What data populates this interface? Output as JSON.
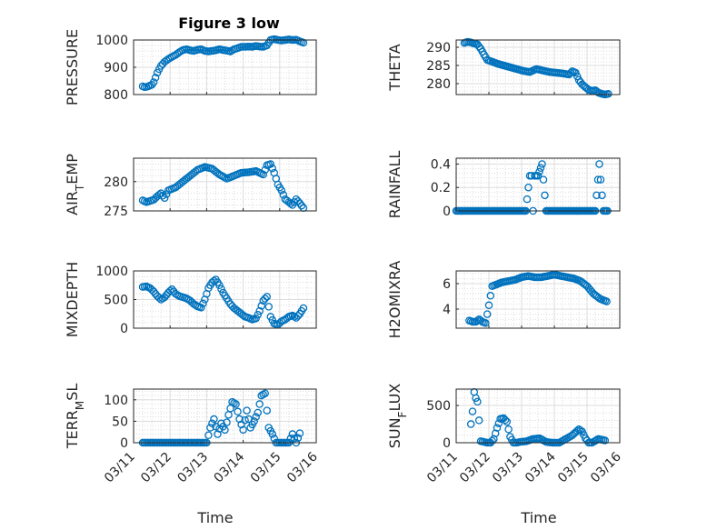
{
  "figure_title": "Figure 3 low",
  "marker_color": "#0072BD",
  "chart_data": [
    {
      "type": "scatter",
      "title": "Figure 3 low",
      "ylabel": "PRESSURE",
      "xlim": [
        "03/11",
        "03/16"
      ],
      "ylim": [
        800,
        1000
      ],
      "yticks": [
        800,
        900,
        1000
      ],
      "grid": true,
      "x": [
        "03/11 06:00",
        "03/11 07:12",
        "03/11 08:24",
        "03/11 09:36",
        "03/11 10:48",
        "03/11 12:00",
        "03/11 13:12",
        "03/11 14:24",
        "03/11 15:36",
        "03/11 16:48",
        "03/11 18:00",
        "03/11 20:24",
        "03/11 22:48",
        "03/12 01:12",
        "03/12 03:36",
        "03/12 06:00",
        "03/12 08:24",
        "03/12 10:48",
        "03/12 13:12",
        "03/12 15:36",
        "03/12 18:00",
        "03/12 20:24",
        "03/12 22:48",
        "03/13 01:12",
        "03/13 03:36",
        "03/13 06:00",
        "03/13 08:24",
        "03/13 10:48",
        "03/13 13:12",
        "03/13 15:36",
        "03/13 18:00",
        "03/13 20:24",
        "03/13 22:48",
        "03/14 01:12",
        "03/14 03:36",
        "03/14 06:00",
        "03/14 08:24",
        "03/14 10:48",
        "03/14 13:12",
        "03/14 15:36",
        "03/14 18:00",
        "03/14 20:24",
        "03/14 22:48",
        "03/15 01:12",
        "03/15 03:36",
        "03/15 06:00",
        "03/15 08:24",
        "03/15 10:48",
        "03/15 13:12",
        "03/15 15:36"
      ],
      "y": [
        830,
        827,
        828,
        830,
        833,
        836,
        845,
        862,
        880,
        893,
        905,
        920,
        930,
        938,
        945,
        955,
        963,
        966,
        962,
        960,
        964,
        966,
        960,
        958,
        960,
        962,
        966,
        963,
        961,
        958,
        966,
        970,
        975,
        975,
        976,
        975,
        978,
        976,
        975,
        980,
        1000,
        1003,
        1000,
        998,
        1000,
        1002,
        1000,
        1001,
        995,
        990
      ]
    },
    {
      "type": "scatter",
      "ylabel": "THETA",
      "xlim": [
        "03/11",
        "03/16"
      ],
      "ylim": [
        277,
        292
      ],
      "yticks": [
        280,
        285,
        290
      ],
      "grid": true,
      "x": [
        "03/11 06:00",
        "03/11 08:24",
        "03/11 10:48",
        "03/11 13:12",
        "03/11 15:36",
        "03/11 18:00",
        "03/11 20:24",
        "03/11 22:48",
        "03/12 01:12",
        "03/12 06:00",
        "03/12 10:48",
        "03/12 15:36",
        "03/12 20:24",
        "03/13 01:12",
        "03/13 06:00",
        "03/13 10:48",
        "03/13 15:36",
        "03/13 20:24",
        "03/14 01:12",
        "03/14 06:00",
        "03/14 10:48",
        "03/14 13:12",
        "03/14 15:36",
        "03/14 18:00",
        "03/14 20:24",
        "03/14 22:48",
        "03/15 01:12",
        "03/15 03:36",
        "03/15 06:00",
        "03/15 08:24",
        "03/15 10:48",
        "03/15 13:12",
        "03/15 15:36"
      ],
      "y": [
        291.2,
        291.5,
        291.3,
        291.0,
        290.8,
        289.6,
        288.0,
        286.5,
        286.2,
        285.5,
        285.0,
        284.5,
        284.0,
        283.5,
        283.2,
        284.0,
        283.6,
        283.2,
        283.0,
        282.8,
        282.5,
        283.4,
        283.0,
        281.0,
        279.8,
        279.0,
        278.3,
        278.0,
        278.2,
        277.5,
        277.2,
        277.0,
        277.2
      ]
    },
    {
      "type": "scatter",
      "ylabel": "AIR_TEMP",
      "xlim": [
        "03/11",
        "03/16"
      ],
      "ylim": [
        275,
        284
      ],
      "yticks": [
        275,
        280
      ],
      "grid": true,
      "x": [
        "03/11 06:00",
        "03/11 08:24",
        "03/11 10:48",
        "03/11 13:12",
        "03/11 15:36",
        "03/11 18:00",
        "03/11 20:24",
        "03/11 22:48",
        "03/12 03:36",
        "03/12 08:24",
        "03/12 13:12",
        "03/12 18:00",
        "03/12 22:48",
        "03/13 03:36",
        "03/13 08:24",
        "03/13 13:12",
        "03/13 18:00",
        "03/13 22:48",
        "03/14 03:36",
        "03/14 08:24",
        "03/14 13:12",
        "03/14 15:36",
        "03/14 18:00",
        "03/14 20:24",
        "03/14 22:48",
        "03/15 01:12",
        "03/15 03:36",
        "03/15 06:00",
        "03/15 08:24",
        "03/15 10:48",
        "03/15 13:12",
        "03/15 15:36"
      ],
      "y": [
        276.8,
        276.5,
        276.7,
        276.9,
        277.5,
        278.0,
        277.2,
        278.5,
        279.0,
        280.0,
        281.0,
        282.0,
        282.5,
        282.2,
        281.2,
        280.5,
        281.0,
        281.5,
        281.6,
        281.8,
        281.2,
        282.8,
        283.0,
        281.5,
        279.5,
        278.5,
        277.0,
        276.5,
        276.0,
        277.0,
        276.3,
        275.5
      ]
    },
    {
      "type": "scatter",
      "ylabel": "RAINFALL",
      "xlim": [
        "03/11",
        "03/16"
      ],
      "ylim": [
        0,
        0.45
      ],
      "yticks": [
        0,
        0.2,
        0.4
      ],
      "grid": true,
      "x": [
        "03/11 00:00",
        "03/11 03:00",
        "03/11 06:00",
        "03/11 09:00",
        "03/11 12:00",
        "03/11 15:00",
        "03/11 18:00",
        "03/11 21:00",
        "03/12 00:00",
        "03/12 03:00",
        "03/12 06:00",
        "03/12 09:00",
        "03/12 12:00",
        "03/12 15:00",
        "03/12 18:00",
        "03/12 21:00",
        "03/13 00:00",
        "03/13 03:00",
        "03/13 06:00",
        "03/13 07:12",
        "03/13 08:24",
        "03/13 09:36",
        "03/13 12:00",
        "03/13 15:00",
        "03/13 18:00",
        "03/13 21:00",
        "03/14 00:00",
        "03/14 03:00",
        "03/14 06:00",
        "03/14 09:00",
        "03/14 12:00",
        "03/14 15:00",
        "03/14 18:00",
        "03/14 21:00",
        "03/15 00:00",
        "03/15 03:00",
        "03/15 06:00",
        "03/15 09:00",
        "03/15 12:00",
        "03/15 15:00"
      ],
      "y": [
        0,
        0,
        0,
        0,
        0,
        0,
        0,
        0,
        0,
        0,
        0,
        0,
        0,
        0,
        0,
        0,
        0,
        0,
        0.3,
        0.3,
        0,
        0.3,
        0.3,
        0.4,
        0,
        0,
        0,
        0,
        0,
        0,
        0,
        0,
        0,
        0,
        0,
        0,
        0,
        0.4,
        0,
        0
      ]
    },
    {
      "type": "scatter",
      "ylabel": "MIXDEPTH",
      "xlim": [
        "03/11",
        "03/16"
      ],
      "ylim": [
        0,
        1000
      ],
      "yticks": [
        0,
        500,
        1000
      ],
      "grid": true,
      "x": [
        "03/11 06:00",
        "03/11 08:24",
        "03/11 10:48",
        "03/11 13:12",
        "03/11 15:36",
        "03/11 18:00",
        "03/11 20:24",
        "03/11 22:48",
        "03/12 01:12",
        "03/12 03:36",
        "03/12 06:00",
        "03/12 08:24",
        "03/12 10:48",
        "03/12 13:12",
        "03/12 15:36",
        "03/12 18:00",
        "03/12 20:24",
        "03/12 22:48",
        "03/13 01:12",
        "03/13 03:36",
        "03/13 06:00",
        "03/13 08:24",
        "03/13 10:48",
        "03/13 13:12",
        "03/13 15:36",
        "03/13 18:00",
        "03/13 20:24",
        "03/13 22:48",
        "03/14 01:12",
        "03/14 03:36",
        "03/14 06:00",
        "03/14 08:24",
        "03/14 10:48",
        "03/14 13:12",
        "03/14 15:36",
        "03/14 18:00",
        "03/14 20:24",
        "03/14 22:48",
        "03/15 01:12",
        "03/15 03:36",
        "03/15 06:00",
        "03/15 08:24",
        "03/15 10:48",
        "03/15 13:12",
        "03/15 15:36"
      ],
      "y": [
        720,
        730,
        700,
        640,
        560,
        500,
        540,
        620,
        680,
        600,
        560,
        540,
        520,
        480,
        420,
        380,
        360,
        500,
        700,
        800,
        850,
        750,
        620,
        520,
        420,
        350,
        300,
        250,
        200,
        180,
        150,
        170,
        300,
        480,
        550,
        200,
        80,
        60,
        120,
        150,
        200,
        220,
        180,
        250,
        350
      ]
    },
    {
      "type": "scatter",
      "ylabel": "H2OMIXRA",
      "xlim": [
        "03/11",
        "03/16"
      ],
      "ylim": [
        2.5,
        7
      ],
      "yticks": [
        4,
        6
      ],
      "grid": true,
      "x": [
        "03/11 09:36",
        "03/11 12:00",
        "03/11 14:24",
        "03/11 16:48",
        "03/11 19:12",
        "03/11 21:36",
        "03/12 00:00",
        "03/12 02:24",
        "03/12 04:48",
        "03/12 07:12",
        "03/12 09:36",
        "03/12 14:24",
        "03/12 19:12",
        "03/13 00:00",
        "03/13 04:48",
        "03/13 09:36",
        "03/13 14:24",
        "03/13 19:12",
        "03/14 00:00",
        "03/14 04:48",
        "03/14 09:36",
        "03/14 14:24",
        "03/14 19:12",
        "03/14 21:36",
        "03/15 00:00",
        "03/15 02:24",
        "03/15 04:48",
        "03/15 07:12",
        "03/15 09:36",
        "03/15 12:00",
        "03/15 14:24"
      ],
      "y": [
        3.1,
        3.0,
        3.0,
        3.2,
        3.0,
        2.9,
        4.3,
        5.8,
        5.9,
        6.0,
        6.1,
        6.2,
        6.3,
        6.5,
        6.6,
        6.5,
        6.5,
        6.6,
        6.7,
        6.6,
        6.5,
        6.4,
        6.2,
        6.0,
        5.8,
        5.5,
        5.2,
        5.0,
        4.8,
        4.7,
        4.6
      ]
    },
    {
      "type": "scatter",
      "ylabel": "TERR_MSL",
      "xlim": [
        "03/11",
        "03/16"
      ],
      "ylim": [
        0,
        125
      ],
      "yticks": [
        0,
        50,
        100
      ],
      "grid": true,
      "x": [
        "03/11 06:00",
        "03/11 12:00",
        "03/11 18:00",
        "03/12 00:00",
        "03/12 06:00",
        "03/12 12:00",
        "03/12 18:00",
        "03/13 00:00",
        "03/13 02:24",
        "03/13 04:48",
        "03/13 07:12",
        "03/13 09:36",
        "03/13 12:00",
        "03/13 14:24",
        "03/13 16:48",
        "03/13 19:12",
        "03/13 21:36",
        "03/14 00:00",
        "03/14 02:24",
        "03/14 04:48",
        "03/14 07:12",
        "03/14 09:36",
        "03/14 12:00",
        "03/14 14:24",
        "03/14 16:48",
        "03/14 19:12",
        "03/14 21:36",
        "03/15 00:00",
        "03/15 03:00",
        "03/15 06:00",
        "03/15 08:24",
        "03/15 10:48",
        "03/15 13:12"
      ],
      "y": [
        0,
        0,
        0,
        0,
        0,
        0,
        0,
        0,
        35,
        55,
        20,
        45,
        30,
        65,
        95,
        90,
        55,
        30,
        75,
        35,
        50,
        70,
        110,
        115,
        35,
        20,
        0,
        0,
        0,
        0,
        20,
        0,
        22
      ]
    },
    {
      "type": "scatter",
      "ylabel": "SUN_FLUX",
      "xlim": [
        "03/11",
        "03/16"
      ],
      "ylim": [
        0,
        720
      ],
      "yticks": [
        0,
        500
      ],
      "grid": true,
      "x": [
        "03/11 10:48",
        "03/11 12:00",
        "03/11 13:12",
        "03/11 14:24",
        "03/11 15:36",
        "03/11 16:48",
        "03/11 18:00",
        "03/11 20:24",
        "03/11 22:48",
        "03/12 01:12",
        "03/12 03:36",
        "03/12 06:00",
        "03/12 08:24",
        "03/12 10:48",
        "03/12 13:12",
        "03/12 15:36",
        "03/12 18:00",
        "03/12 20:24",
        "03/12 22:48",
        "03/13 03:36",
        "03/13 08:24",
        "03/13 13:12",
        "03/13 18:00",
        "03/13 22:48",
        "03/14 03:36",
        "03/14 08:24",
        "03/14 13:12",
        "03/14 18:00",
        "03/14 20:24",
        "03/14 22:48",
        "03/15 01:12",
        "03/15 03:36",
        "03/15 08:24",
        "03/15 13:12"
      ],
      "y": [
        250,
        420,
        680,
        600,
        550,
        300,
        20,
        10,
        0,
        0,
        50,
        200,
        320,
        330,
        280,
        80,
        0,
        0,
        10,
        20,
        50,
        60,
        10,
        0,
        0,
        50,
        100,
        180,
        150,
        60,
        0,
        0,
        50,
        30
      ]
    }
  ],
  "x_tick_labels": [
    "03/11",
    "03/12",
    "03/13",
    "03/14",
    "03/15",
    "03/16"
  ],
  "xlabel": "Time"
}
